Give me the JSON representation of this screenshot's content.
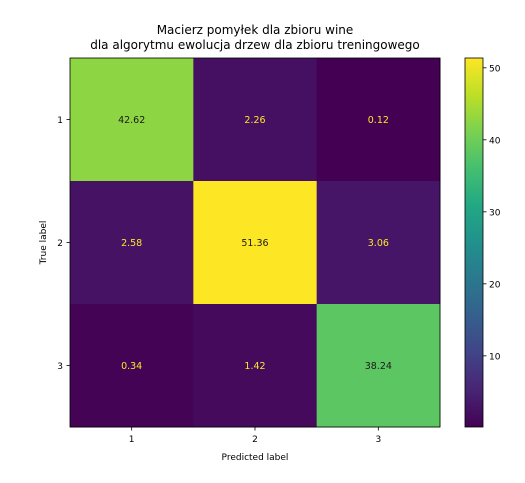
{
  "chart_data": {
    "type": "heatmap",
    "title_lines": [
      "Macierz pomyłek dla zbioru wine",
      "dla algorytmu ewolucja drzew dla zbioru treningowego"
    ],
    "xlabel": "Predicted label",
    "ylabel": "True label",
    "x_categories": [
      "1",
      "2",
      "3"
    ],
    "y_categories": [
      "1",
      "2",
      "3"
    ],
    "values": [
      [
        42.62,
        2.26,
        0.12
      ],
      [
        2.58,
        51.36,
        3.06
      ],
      [
        0.34,
        1.42,
        38.24
      ]
    ],
    "colormap": "viridis",
    "color_range": [
      0.12,
      51.36
    ],
    "colorbar_ticks": [
      10,
      20,
      30,
      40,
      50
    ],
    "colors": {
      "text_on_dark": "#fde725",
      "text_on_light": "#1a1a1a"
    },
    "grid": false
  }
}
